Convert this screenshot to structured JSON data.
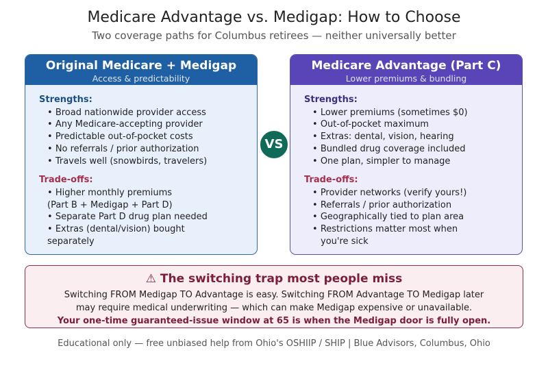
{
  "header": {
    "title": "Medicare Advantage vs. Medigap: How to Choose",
    "subtitle": "Two coverage paths for Columbus retirees — neither universally better"
  },
  "left_card": {
    "title": "Original Medicare + Medigap",
    "tagline": "Access & predictability",
    "strengths_label": "Strengths:",
    "strengths": [
      "Broad nationwide provider access",
      "Any Medicare-accepting provider",
      "Predictable out-of-pocket costs",
      "No referrals / prior authorization",
      "Travels well (snowbirds, travelers)"
    ],
    "tradeoffs_label": "Trade-offs:",
    "tradeoffs": [
      {
        "first": "Higher monthly premiums",
        "rest": "(Part B + Medigap + Part D)"
      },
      {
        "first": "Separate Part D drug plan needed",
        "rest": ""
      },
      {
        "first": "Extras (dental/vision) bought",
        "rest": "separately"
      }
    ],
    "accent_color": "#1f5fa3"
  },
  "right_card": {
    "title": "Medicare Advantage (Part C)",
    "tagline": "Lower premiums & bundling",
    "strengths_label": "Strengths:",
    "strengths": [
      "Lower premiums (sometimes $0)",
      "Out-of-pocket maximum",
      "Extras: dental, vision, hearing",
      "Bundled drug coverage included",
      "One plan, simpler to manage"
    ],
    "tradeoffs_label": "Trade-offs:",
    "tradeoffs": [
      {
        "first": "Provider networks (verify yours!)",
        "rest": ""
      },
      {
        "first": "Referrals / prior authorization",
        "rest": ""
      },
      {
        "first": "Geographically tied to plan area",
        "rest": ""
      },
      {
        "first": "Restrictions matter most when",
        "rest": "you're sick"
      }
    ],
    "accent_color": "#5a45b8"
  },
  "vs_badge": {
    "label": "VS",
    "color": "#0f6b57"
  },
  "trap": {
    "icon": "warning-icon",
    "title": "⚠ The switching trap most people miss",
    "line1": "Switching FROM Medigap TO Advantage is easy. Switching FROM Advantage TO Medigap later",
    "line2": "may require medical underwriting — which can make Medigap expensive or unavailable.",
    "emphasis": "Your one-time guaranteed-issue window at 65 is when the Medigap door is fully open.",
    "accent_color": "#7a1f3b"
  },
  "footer": {
    "text": "Educational only — free unbiased help from Ohio's OSHIIP / SHIP | Blue Advisors, Columbus, Ohio"
  }
}
